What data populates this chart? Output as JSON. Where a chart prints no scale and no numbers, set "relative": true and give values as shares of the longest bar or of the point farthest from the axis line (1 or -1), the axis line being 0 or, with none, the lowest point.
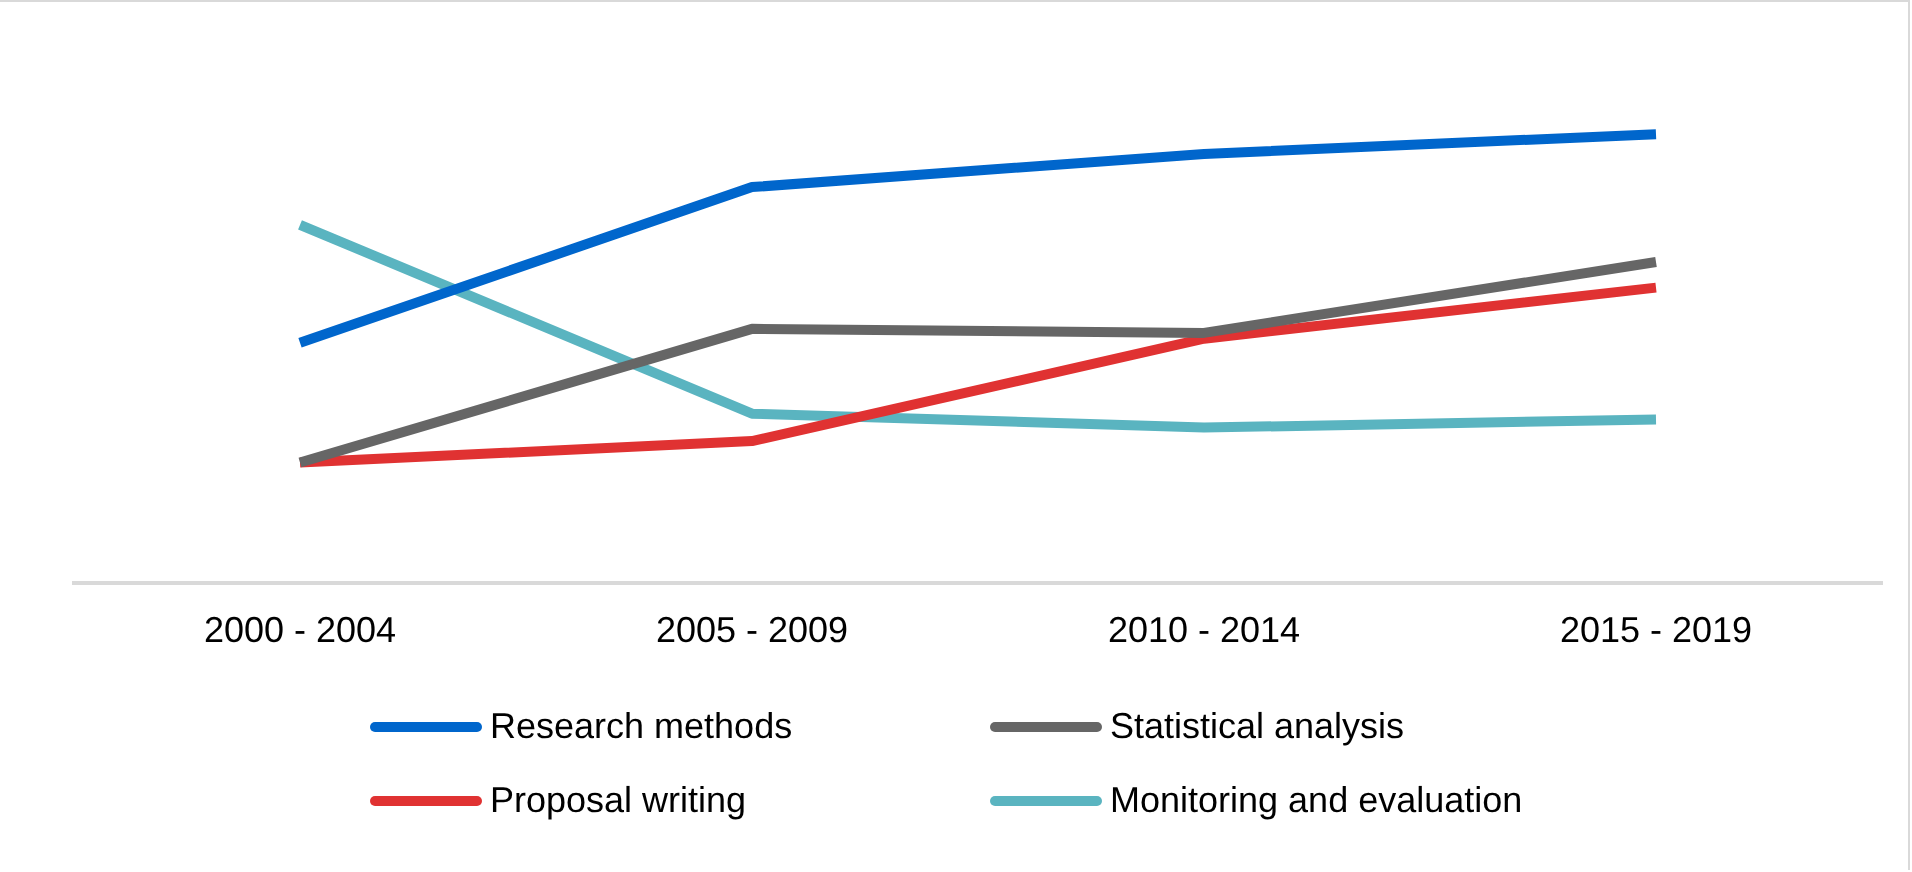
{
  "chart_data": {
    "type": "line",
    "relative": true,
    "legend": "bottom",
    "grid": false,
    "marker": "none",
    "line_style": "solid",
    "categories": [
      "2000 - 2004",
      "2005 - 2009",
      "2010 - 2014",
      "2015 - 2019"
    ],
    "series": [
      {
        "name": "Research methods",
        "color": "#0066cc",
        "values": [
          0.535,
          0.882,
          0.956,
          1
        ]
      },
      {
        "name": "Statistical analysis",
        "color": "#666666",
        "values": [
          0.268,
          0.566,
          0.557,
          0.715
        ]
      },
      {
        "name": "Proposal writing",
        "color": "#e03232",
        "values": [
          0.268,
          0.316,
          0.544,
          0.658
        ]
      },
      {
        "name": "Monitoring and evaluation",
        "color": "#5ab4c0",
        "values": [
          0.798,
          0.377,
          0.346,
          0.364
        ]
      }
    ]
  }
}
